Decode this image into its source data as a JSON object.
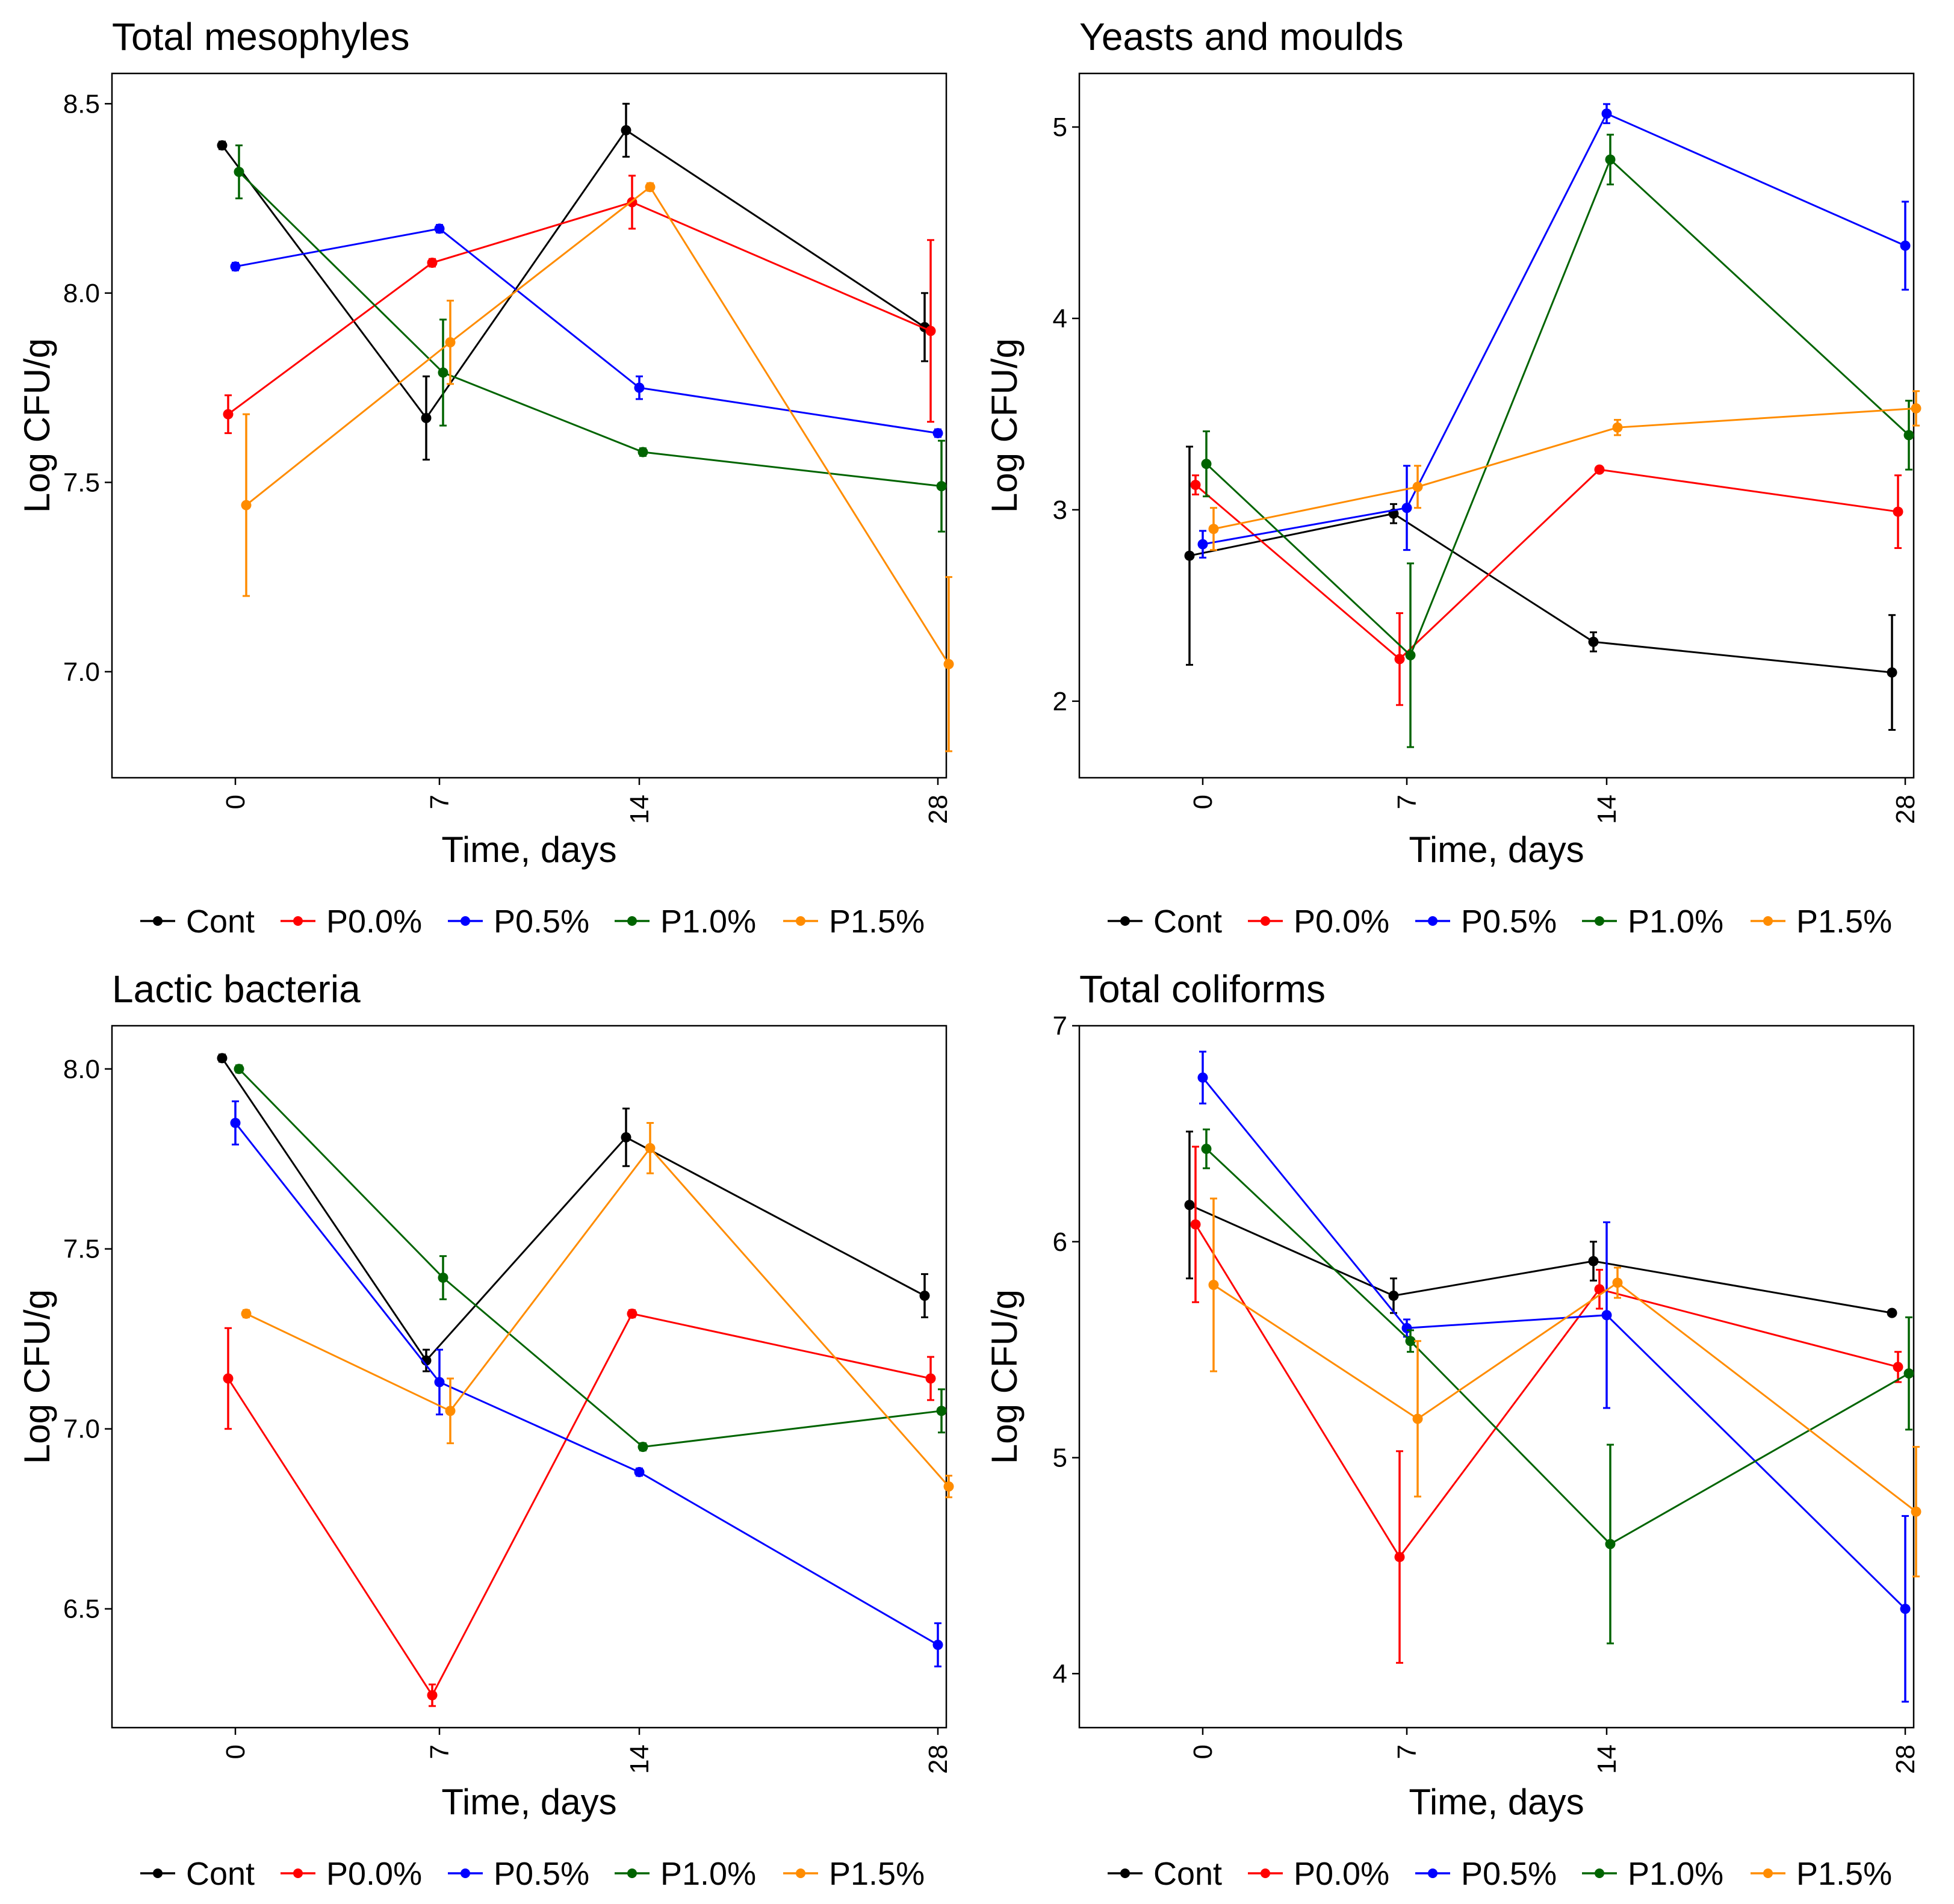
{
  "colors": {
    "Cont": "#000000",
    "P0.0%": "#ff0000",
    "P0.5%": "#0000ff",
    "P1.0%": "#006400",
    "P1.5%": "#ff8c00"
  },
  "legend": [
    "Cont",
    "P0.0%",
    "P0.5%",
    "P1.0%",
    "P1.5%"
  ],
  "chart_data": [
    {
      "type": "line",
      "title": "Total mesophyles",
      "xlabel": "Time, days",
      "ylabel": "Log CFU/g",
      "x": [
        "0",
        "7",
        "14",
        "28"
      ],
      "ylim": [
        6.72,
        8.58
      ],
      "yticks": [
        "7.0",
        "7.5",
        "8.0",
        "8.5"
      ],
      "series": [
        {
          "name": "Cont",
          "values": [
            8.39,
            7.67,
            8.43,
            7.91
          ],
          "err": [
            0.01,
            0.11,
            0.07,
            0.09
          ]
        },
        {
          "name": "P0.0%",
          "values": [
            7.68,
            8.08,
            8.24,
            7.9
          ],
          "err": [
            0.05,
            0.01,
            0.07,
            0.24
          ]
        },
        {
          "name": "P0.5%",
          "values": [
            8.07,
            8.17,
            7.75,
            7.63
          ],
          "err": [
            0.01,
            0.01,
            0.03,
            0.01
          ]
        },
        {
          "name": "P1.0%",
          "values": [
            8.32,
            7.79,
            7.58,
            7.49
          ],
          "err": [
            0.07,
            0.14,
            0.01,
            0.12
          ]
        },
        {
          "name": "P1.5%",
          "values": [
            7.44,
            7.87,
            8.28,
            7.02
          ],
          "err": [
            0.24,
            0.11,
            0.01,
            0.23
          ]
        }
      ]
    },
    {
      "type": "line",
      "title": "Yeasts and moulds",
      "xlabel": "Time, days",
      "ylabel": "Log CFU/g",
      "x": [
        "0",
        "7",
        "14",
        "28"
      ],
      "ylim": [
        1.6,
        5.28
      ],
      "yticks": [
        "2",
        "3",
        "4",
        "5"
      ],
      "series": [
        {
          "name": "Cont",
          "values": [
            2.76,
            2.98,
            2.31,
            2.15
          ],
          "err": [
            0.57,
            0.05,
            0.05,
            0.3
          ]
        },
        {
          "name": "P0.0%",
          "values": [
            3.13,
            2.22,
            3.21,
            2.99
          ],
          "err": [
            0.05,
            0.24,
            0.01,
            0.19
          ]
        },
        {
          "name": "P0.5%",
          "values": [
            2.82,
            3.01,
            5.07,
            4.38
          ],
          "err": [
            0.07,
            0.22,
            0.05,
            0.23
          ]
        },
        {
          "name": "P1.0%",
          "values": [
            3.24,
            2.24,
            4.83,
            3.39
          ],
          "err": [
            0.17,
            0.48,
            0.13,
            0.18
          ]
        },
        {
          "name": "P1.5%",
          "values": [
            2.9,
            3.12,
            3.43,
            3.53
          ],
          "err": [
            0.11,
            0.11,
            0.04,
            0.09
          ]
        }
      ]
    },
    {
      "type": "line",
      "title": "Lactic bacteria",
      "xlabel": "Time, days",
      "ylabel": "Log CFU/g",
      "x": [
        "0",
        "7",
        "14",
        "28"
      ],
      "ylim": [
        6.17,
        8.12
      ],
      "yticks": [
        "6.5",
        "7.0",
        "7.5",
        "8.0"
      ],
      "series": [
        {
          "name": "Cont",
          "values": [
            8.03,
            7.19,
            7.81,
            7.37
          ],
          "err": [
            0.01,
            0.03,
            0.08,
            0.06
          ]
        },
        {
          "name": "P0.0%",
          "values": [
            7.14,
            6.26,
            7.32,
            7.14
          ],
          "err": [
            0.14,
            0.03,
            0.01,
            0.06
          ]
        },
        {
          "name": "P0.5%",
          "values": [
            7.85,
            7.13,
            6.88,
            6.4
          ],
          "err": [
            0.06,
            0.09,
            0.01,
            0.06
          ]
        },
        {
          "name": "P1.0%",
          "values": [
            8.0,
            7.42,
            6.95,
            7.05
          ],
          "err": [
            0.01,
            0.06,
            0.01,
            0.06
          ]
        },
        {
          "name": "P1.5%",
          "values": [
            7.32,
            7.05,
            7.78,
            6.84
          ],
          "err": [
            0.01,
            0.09,
            0.07,
            0.03
          ]
        }
      ]
    },
    {
      "type": "line",
      "title": "Total coliforms",
      "xlabel": "Time, days",
      "ylabel": "Log CFU/g",
      "x": [
        "0",
        "7",
        "14",
        "28"
      ],
      "ylim": [
        3.75,
        7.0
      ],
      "yticks": [
        "4",
        "5",
        "6",
        "7"
      ],
      "series": [
        {
          "name": "Cont",
          "values": [
            6.17,
            5.75,
            5.91,
            5.67
          ],
          "err": [
            0.34,
            0.08,
            0.09,
            0.01
          ]
        },
        {
          "name": "P0.0%",
          "values": [
            6.08,
            4.54,
            5.78,
            5.42
          ],
          "err": [
            0.36,
            0.49,
            0.09,
            0.07
          ]
        },
        {
          "name": "P0.5%",
          "values": [
            6.76,
            5.6,
            5.66,
            4.3
          ],
          "err": [
            0.12,
            0.04,
            0.43,
            0.43
          ]
        },
        {
          "name": "P1.0%",
          "values": [
            6.43,
            5.54,
            4.6,
            5.39
          ],
          "err": [
            0.09,
            0.05,
            0.46,
            0.26
          ]
        },
        {
          "name": "P1.5%",
          "values": [
            5.8,
            5.18,
            5.81,
            4.75
          ],
          "err": [
            0.4,
            0.36,
            0.07,
            0.3
          ]
        }
      ]
    }
  ]
}
